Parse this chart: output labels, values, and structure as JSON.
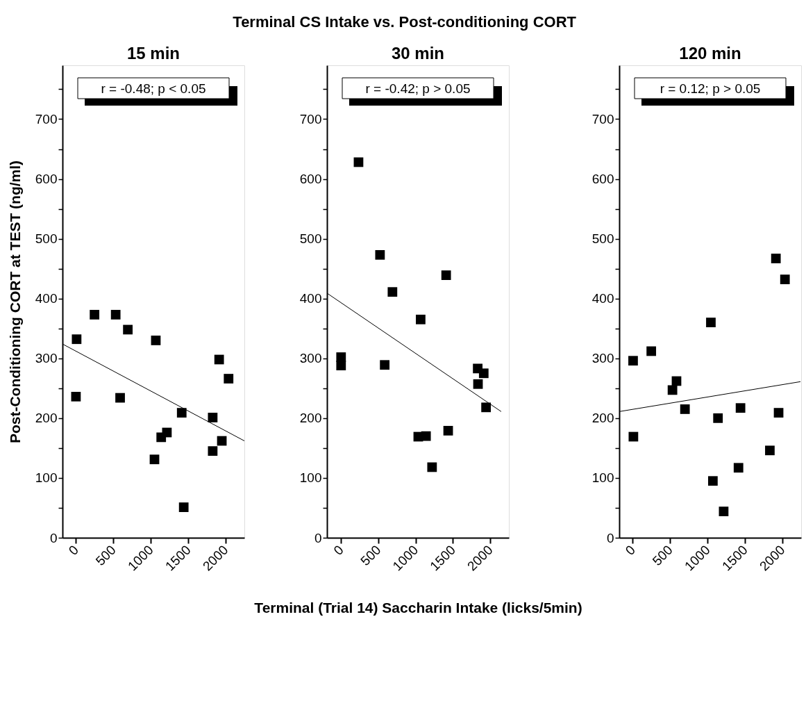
{
  "chart_data": [
    {
      "type": "scatter",
      "title": "15 min",
      "ylabel": "Post-Conditioning CORT at TEST (ng/ml)",
      "annotations": [
        "Terminal CS Intake vs. Post-conditioning CORT",
        "r = -0.48; p < 0.05"
      ],
      "grid": false,
      "xlim": [
        -180,
        2250
      ],
      "ylim": [
        0,
        790
      ],
      "xticks": [
        0,
        500,
        1000,
        1500,
        2000
      ],
      "yticks": [
        0,
        {
          "value": 50,
          "label": null
        },
        100,
        {
          "value": 150,
          "label": null
        },
        200,
        {
          "value": 250,
          "label": null
        },
        300,
        {
          "value": 350,
          "label": null
        },
        400,
        {
          "value": 450,
          "label": null
        },
        500,
        {
          "value": 550,
          "label": null
        },
        600,
        {
          "value": 650,
          "label": null
        },
        700,
        {
          "value": 750,
          "label": null
        }
      ],
      "series": [
        {
          "marker": "square",
          "color": "#000000",
          "x": [
            9,
            248,
            531,
            693,
            1067,
            0,
            590,
            1049,
            1139,
            1215,
            1413,
            1440,
            1827,
            1827,
            1949,
            1913,
            2039
          ],
          "values": [
            332,
            373,
            373,
            348,
            330,
            236,
            234,
            131,
            168,
            176,
            209,
            51,
            201,
            145,
            162,
            298,
            266
          ]
        },
        {
          "type": "line",
          "color": "#000000",
          "x": [
            -180,
            2250
          ],
          "values": [
            324,
            162
          ]
        }
      ]
    },
    {
      "type": "scatter",
      "title": "30 min",
      "xlabel": "Terminal (Trial 14) Saccharin Intake (licks/5min)",
      "annotations": [
        "r = -0.42; p > 0.05"
      ],
      "grid": false,
      "xlim": [
        -189,
        2250
      ],
      "ylim": [
        0,
        790
      ],
      "xticks": [
        0,
        500,
        1000,
        1500,
        2000
      ],
      "yticks": [
        0,
        {
          "value": 50,
          "label": null
        },
        100,
        {
          "value": 150,
          "label": null
        },
        200,
        {
          "value": 250,
          "label": null
        },
        300,
        {
          "value": 350,
          "label": null
        },
        400,
        {
          "value": 450,
          "label": null
        },
        500,
        {
          "value": 550,
          "label": null
        },
        600,
        {
          "value": 650,
          "label": null
        },
        700,
        {
          "value": 750,
          "label": null
        }
      ],
      "series": [
        {
          "marker": "square",
          "color": "#000000",
          "x": [
            0,
            0,
            234,
            522,
            689,
            585,
            1067,
            1409,
            1035,
            1139,
            1220,
            1436,
            1832,
            1836,
            1913,
            1944
          ],
          "values": [
            302,
            288,
            628,
            473,
            411,
            289,
            365,
            439,
            169,
            170,
            118,
            179,
            283,
            257,
            275,
            218
          ]
        },
        {
          "type": "line",
          "color": "#000000",
          "x": [
            -189,
            2147
          ],
          "values": [
            409,
            211
          ]
        }
      ]
    },
    {
      "type": "scatter",
      "title": "120 min",
      "annotations": [
        "r = 0.12; p > 0.05"
      ],
      "grid": false,
      "xlim": [
        -180,
        2250
      ],
      "ylim": [
        0,
        790
      ],
      "xticks": [
        0,
        500,
        1000,
        1500,
        2000
      ],
      "yticks": [
        0,
        {
          "value": 50,
          "label": null
        },
        100,
        {
          "value": 150,
          "label": null
        },
        200,
        {
          "value": 250,
          "label": null
        },
        300,
        {
          "value": 350,
          "label": null
        },
        400,
        {
          "value": 450,
          "label": null
        },
        500,
        {
          "value": 550,
          "label": null
        },
        600,
        {
          "value": 650,
          "label": null
        },
        700,
        {
          "value": 750,
          "label": null
        }
      ],
      "series": [
        {
          "marker": "square",
          "color": "#000000",
          "x": [
            5,
            9,
            248,
            531,
            585,
            698,
            1044,
            1071,
            1139,
            1215,
            1413,
            1440,
            1832,
            1913,
            2034,
            1949
          ],
          "values": [
            296,
            169,
            312,
            247,
            262,
            215,
            360,
            95,
            200,
            44,
            117,
            217,
            146,
            467,
            432,
            209
          ]
        },
        {
          "type": "line",
          "color": "#000000",
          "x": [
            -180,
            2241
          ],
          "values": [
            211,
            261
          ]
        }
      ]
    }
  ]
}
